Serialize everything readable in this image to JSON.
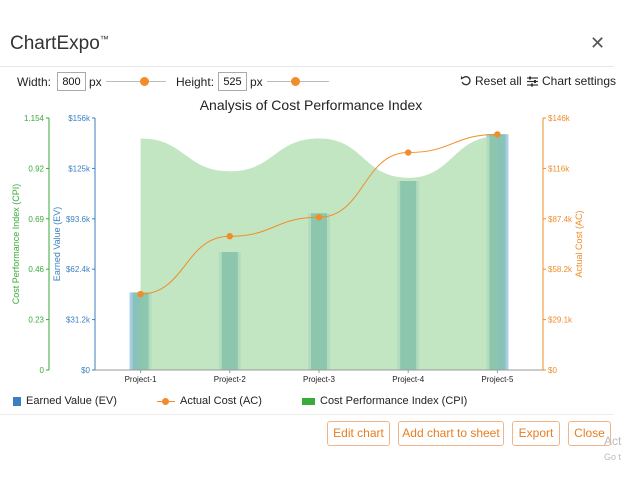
{
  "app": {
    "title": "ChartExpo",
    "trademark": "™"
  },
  "controls": {
    "width_label": "Width:",
    "width_value": "800",
    "width_unit": "px",
    "height_label": "Height:",
    "height_value": "525",
    "height_unit": "px",
    "reset_label": "Reset all",
    "settings_label": "Chart settings"
  },
  "buttons": {
    "edit": "Edit chart",
    "add": "Add chart to sheet",
    "export": "Export",
    "close": "Close"
  },
  "overlay": {
    "line1": "Act",
    "line2": "Go t"
  },
  "colors": {
    "ev": "#a9cce6",
    "ac": "#f28c28",
    "cpi": "#b4dfb4",
    "cpi_axis": "#3aaa3a",
    "ev_axis": "#3a7fc1",
    "accent": "#e67e22"
  },
  "chart_data": {
    "type": "bar",
    "title": "Analysis of Cost Performance Index",
    "categories": [
      "Project-1",
      "Project-2",
      "Project-3",
      "Project-4",
      "Project-5"
    ],
    "axes": {
      "cpi": {
        "label": "Cost Performance Index (CPI)",
        "range": [
          0,
          1.154
        ],
        "ticks": [
          "0",
          "0.23",
          "0.46",
          "0.69",
          "0.92",
          "1.154"
        ]
      },
      "ev": {
        "label": "Earned Value (EV)",
        "range": [
          0,
          156000
        ],
        "ticks": [
          "$0",
          "$31.2k",
          "$62.4k",
          "$93.6k",
          "$125k",
          "$156k"
        ]
      },
      "ac": {
        "label": "Actual Cost (AC)",
        "range": [
          0,
          146000
        ],
        "ticks": [
          "$0",
          "$29.1k",
          "$58.2k",
          "$87.4k",
          "$116k",
          "$146k"
        ]
      }
    },
    "series": [
      {
        "name": "Earned Value (EV)",
        "type": "bar",
        "axis": "ev",
        "values": [
          48000,
          73000,
          97000,
          117000,
          146000
        ]
      },
      {
        "name": "Actual Cost (AC)",
        "type": "line",
        "axis": "ac",
        "values": [
          44000,
          77500,
          88500,
          126000,
          136500
        ]
      },
      {
        "name": "Cost Performance Index (CPI)",
        "type": "area",
        "axis": "cpi",
        "values": [
          1.06,
          0.91,
          1.06,
          0.88,
          1.07
        ]
      }
    ],
    "legend_position": "bottom",
    "grid": false
  }
}
